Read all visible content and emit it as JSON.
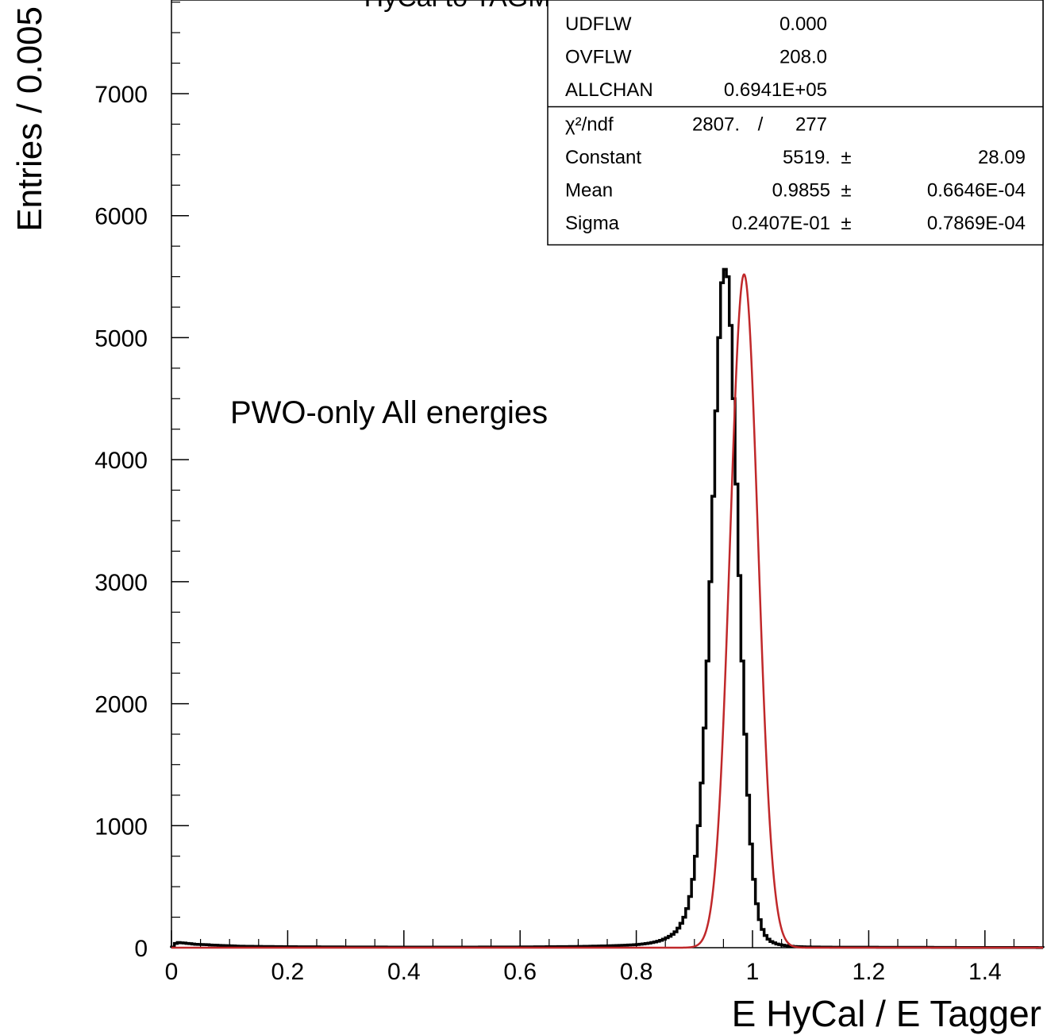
{
  "chart_data": {
    "type": "histogram",
    "title": "HyCal to TAGM-E: hit energy ratio",
    "xlabel": "E HyCal / E Tagger",
    "ylabel": "Entries / 0.005",
    "annotation": "PWO-only All energies",
    "xlim": [
      0,
      1.5
    ],
    "ylim": [
      0,
      7800
    ],
    "x_ticks": [
      "0",
      "0.2",
      "0.4",
      "0.6",
      "0.8",
      "1",
      "1.2",
      "1.4"
    ],
    "x_tick_values": [
      0,
      0.2,
      0.4,
      0.6,
      0.8,
      1.0,
      1.2,
      1.4
    ],
    "y_ticks": [
      "0",
      "1000",
      "2000",
      "3000",
      "4000",
      "5000",
      "6000",
      "7000"
    ],
    "y_tick_values": [
      0,
      1000,
      2000,
      3000,
      4000,
      5000,
      6000,
      7000
    ],
    "bin_width": 0.005,
    "histogram": {
      "x": [
        0.0025,
        0.0075,
        0.0125,
        0.0175,
        0.0225,
        0.0275,
        0.0325,
        0.0375,
        0.0425,
        0.0475,
        0.0525,
        0.0575,
        0.0625,
        0.0675,
        0.0725,
        0.0775,
        0.0825,
        0.0875,
        0.0925,
        0.0975,
        0.12,
        0.16,
        0.2,
        0.25,
        0.3,
        0.4,
        0.5,
        0.6,
        0.65,
        0.7,
        0.75,
        0.78,
        0.8,
        0.82,
        0.84,
        0.85,
        0.86,
        0.8675,
        0.8725,
        0.8775,
        0.8825,
        0.8875,
        0.8925,
        0.8975,
        0.9025,
        0.9075,
        0.9125,
        0.9175,
        0.9225,
        0.9275,
        0.9325,
        0.9375,
        0.9425,
        0.9475,
        0.9525,
        0.9575,
        0.9625,
        0.9675,
        0.9725,
        0.9775,
        0.9825,
        0.9875,
        0.9925,
        0.9975,
        1.0025,
        1.0075,
        1.0125,
        1.0175,
        1.0225,
        1.0275,
        1.0325,
        1.0375,
        1.0425,
        1.0475,
        1.0525,
        1.0575,
        1.0625,
        1.0675,
        1.0725,
        1.0775,
        1.0825,
        1.09,
        1.1,
        1.12,
        1.15,
        1.2,
        1.25,
        1.3,
        1.35,
        1.4,
        1.45,
        1.5
      ],
      "y": [
        5,
        35,
        42,
        40,
        38,
        35,
        33,
        30,
        28,
        27,
        26,
        25,
        24,
        22,
        21,
        20,
        19,
        18,
        17,
        16,
        12,
        10,
        8,
        7,
        6,
        5,
        5,
        6,
        8,
        10,
        15,
        20,
        25,
        35,
        55,
        75,
        100,
        130,
        160,
        200,
        250,
        320,
        420,
        560,
        750,
        1000,
        1350,
        1800,
        2350,
        3000,
        3700,
        4400,
        5000,
        5450,
        5560,
        5500,
        5100,
        4500,
        3800,
        3050,
        2350,
        1750,
        1250,
        850,
        560,
        360,
        230,
        150,
        100,
        70,
        50,
        40,
        30,
        25,
        20,
        17,
        15,
        12,
        10,
        9,
        8,
        7,
        6,
        5,
        4,
        4,
        3,
        3,
        2,
        2,
        2,
        1
      ]
    },
    "fit": {
      "function": "gaussian",
      "constant": 5519,
      "mean": 0.9855,
      "sigma": 0.02407,
      "color": "#c0282a"
    },
    "stats_box": {
      "rows": [
        {
          "label": "UDFLW",
          "value": "0.000"
        },
        {
          "label": "OVFLW",
          "value": "208.0"
        },
        {
          "label": "ALLCHAN",
          "value": "0.6941E+05"
        }
      ],
      "chi2_label": "χ²/ndf",
      "chi2_value": "2807.",
      "ndf_sep": "/",
      "ndf_value": "277",
      "fit_rows": [
        {
          "label": "Constant",
          "value": "5519.",
          "pm": "±",
          "error": "28.09"
        },
        {
          "label": "Mean",
          "value": "0.9855",
          "pm": "±",
          "error": "0.6646E-04"
        },
        {
          "label": "Sigma",
          "value": "0.2407E-01",
          "pm": "±",
          "error": "0.7869E-04"
        }
      ]
    },
    "colors": {
      "histogram": "#000000",
      "fit": "#c0282a"
    },
    "grid": false
  }
}
